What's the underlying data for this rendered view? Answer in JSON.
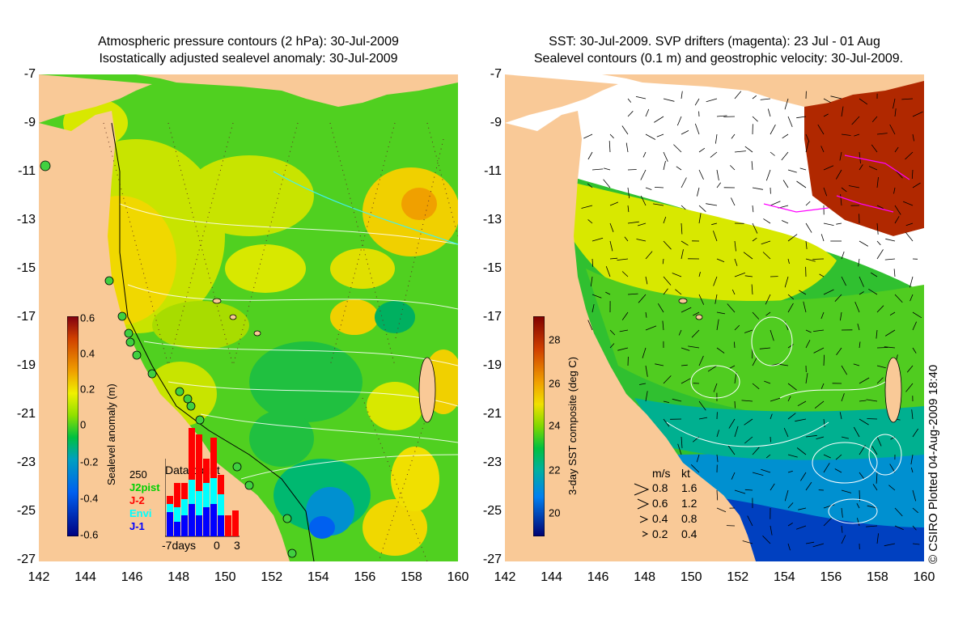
{
  "left_panel": {
    "title_line1": "Atmospheric pressure contours (2 hPa): 30-Jul-2009",
    "title_line2": "Isostatically adjusted sealevel anomaly: 30-Jul-2009",
    "colorbar_label": "Sealevel anomaly (m)",
    "colorbar_ticks": [
      "0.6",
      "0.4",
      "0.2",
      "0",
      "-0.2",
      "-0.4",
      "-0.6"
    ],
    "data_count": {
      "title": "Data count",
      "max_label": "250",
      "series_labels": [
        "J2pist",
        "J-2",
        "Envi",
        "J-1"
      ],
      "series_colors": [
        "#00d000",
        "#ff0000",
        "#00ffff",
        "#0000ff"
      ],
      "x_labels": [
        "-7days",
        "0",
        "3"
      ]
    }
  },
  "right_panel": {
    "title_line1": "SST: 30-Jul-2009. SVP drifters (magenta): 23 Jul - 01 Aug",
    "title_line2": "Sealevel contours (0.1 m) and geostrophic velocity: 30-Jul-2009.",
    "colorbar_label": "3-day SST composite (deg C)",
    "colorbar_ticks": [
      "28",
      "26",
      "24",
      "22",
      "20"
    ],
    "velocity_legend": {
      "header_ms": "m/s",
      "header_kt": "kt",
      "rows": [
        {
          "ms": "0.8",
          "kt": "1.6"
        },
        {
          "ms": "0.6",
          "kt": "1.2"
        },
        {
          "ms": "0.4",
          "kt": "0.8"
        },
        {
          "ms": "0.2",
          "kt": "0.4"
        }
      ]
    },
    "credit": "© CSIRO Plotted 04-Aug-2009 18:40"
  },
  "axes": {
    "x_ticks": [
      "142",
      "144",
      "146",
      "148",
      "150",
      "152",
      "154",
      "156",
      "158",
      "160"
    ],
    "y_ticks": [
      "-7",
      "-9",
      "-11",
      "-13",
      "-15",
      "-17",
      "-19",
      "-21",
      "-23",
      "-25",
      "-27"
    ]
  },
  "colors": {
    "land": "#f9c997",
    "sla_ramp": [
      "#800010",
      "#d04000",
      "#f08000",
      "#f0c000",
      "#f0f000",
      "#a0e000",
      "#40d000",
      "#00b060",
      "#00a0c0",
      "#0070f0",
      "#0030c0",
      "#000080"
    ],
    "sst_ramp": [
      "#800000",
      "#c03000",
      "#f08000",
      "#f0d000",
      "#d0f000",
      "#60d000",
      "#00c040",
      "#00b090",
      "#00a0d0",
      "#0060f0",
      "#0020c0",
      "#000070"
    ]
  }
}
